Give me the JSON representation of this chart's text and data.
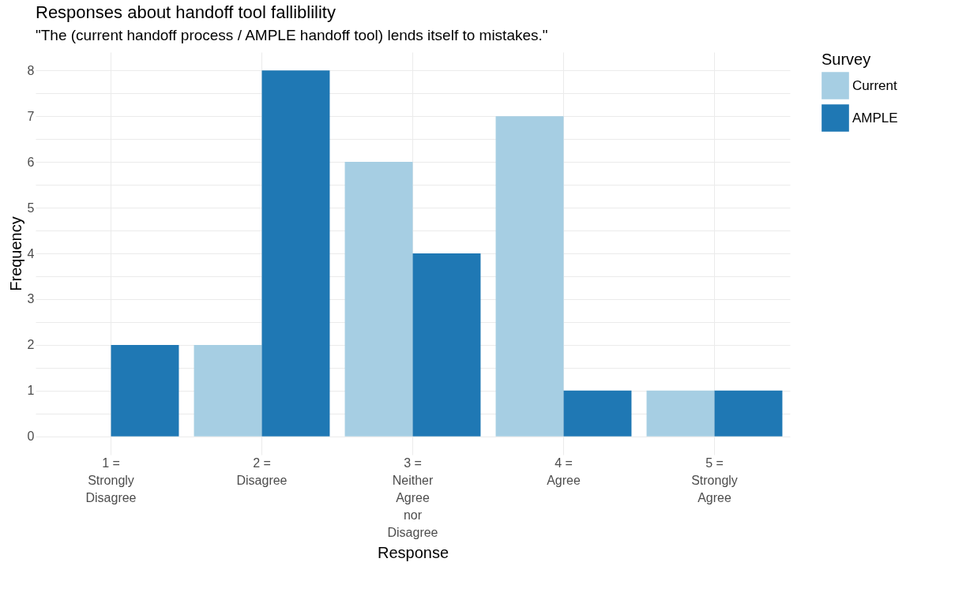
{
  "chart_data": {
    "type": "bar",
    "title": "Responses about handoff tool falliblility",
    "subtitle": "\"The (current handoff process / AMPLE handoff tool) lends itself to mistakes.\"",
    "xlabel": "Response",
    "ylabel": "Frequency",
    "legend_title": "Survey",
    "categories": [
      "1 =\nStrongly\nDisagree",
      "2 =\nDisagree",
      "3 =\nNeither\nAgree\nnor\nDisagree",
      "4 =\nAgree",
      "5 =\nStrongly\nAgree"
    ],
    "series": [
      {
        "name": "Current",
        "color": "#a6cee3",
        "values": [
          0,
          2,
          6,
          7,
          1
        ]
      },
      {
        "name": "AMPLE",
        "color": "#1f78b4",
        "values": [
          2,
          8,
          4,
          1,
          1
        ]
      }
    ],
    "ylim": [
      -0.4,
      8.4
    ],
    "yticks": [
      0,
      {
        "value": 0.5,
        "label": null
      },
      1,
      {
        "value": 1.5,
        "label": null
      },
      2,
      {
        "value": 2.5,
        "label": null
      },
      3,
      {
        "value": 3.5,
        "label": null
      },
      4,
      {
        "value": 4.5,
        "label": null
      },
      5,
      {
        "value": 5.5,
        "label": null
      },
      6,
      {
        "value": 6.5,
        "label": null
      },
      7,
      {
        "value": 7.5,
        "label": null
      },
      8
    ],
    "grid": true,
    "legend": "right"
  }
}
